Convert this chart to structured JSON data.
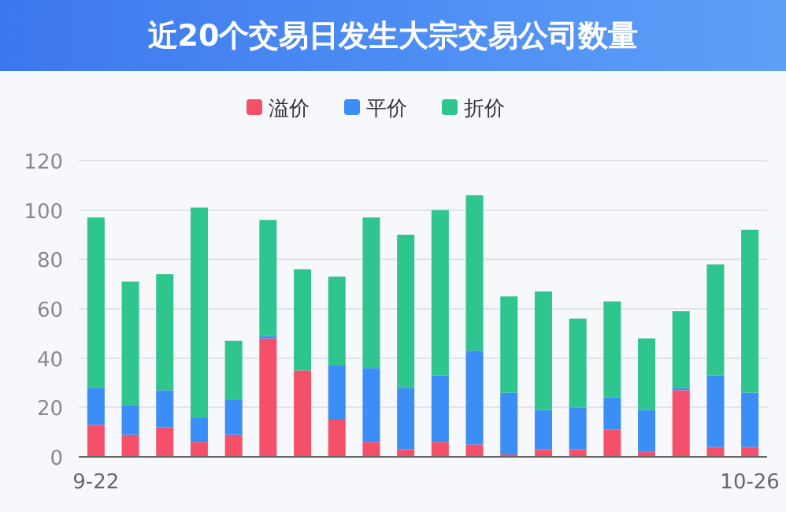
{
  "chart_data": {
    "type": "bar",
    "title": "近20个交易日发生大宗交易公司数量",
    "categories": [
      "9-22",
      null,
      null,
      null,
      null,
      null,
      null,
      null,
      null,
      null,
      null,
      null,
      null,
      null,
      null,
      null,
      null,
      null,
      null,
      "10-26"
    ],
    "series": [
      {
        "name": "溢价",
        "color": "#f5506a",
        "values": [
          13,
          9,
          12,
          6,
          9,
          48,
          35,
          15,
          6,
          3,
          6,
          5,
          1,
          3,
          3,
          11,
          2,
          27,
          4,
          4
        ]
      },
      {
        "name": "平价",
        "color": "#3a8ef5",
        "values": [
          15,
          12,
          15,
          10,
          14,
          1,
          0,
          22,
          30,
          25,
          27,
          38,
          25,
          16,
          17,
          13,
          17,
          1,
          29,
          22
        ]
      },
      {
        "name": "折价",
        "color": "#2ec58f",
        "values": [
          69,
          50,
          47,
          85,
          24,
          47,
          41,
          36,
          61,
          62,
          67,
          63,
          39,
          48,
          36,
          39,
          29,
          31,
          45,
          66
        ]
      }
    ],
    "stacked": true,
    "ylim": [
      0,
      120
    ],
    "yticks": [
      0,
      20,
      40,
      60,
      80,
      100,
      120
    ],
    "grid": "y",
    "legend": "top"
  }
}
